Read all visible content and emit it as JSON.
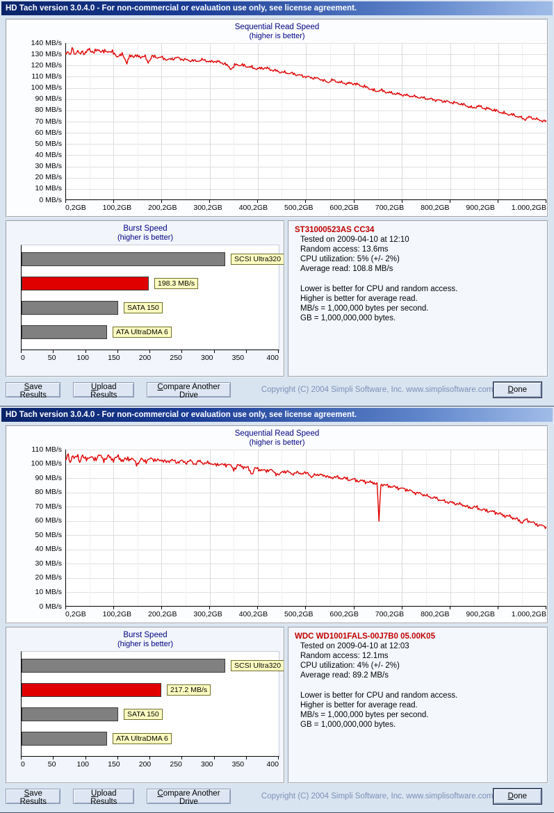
{
  "buttons": {
    "save": "Save Results",
    "upload": "Upload Results",
    "compare": "Compare Another Drive",
    "done": "Done"
  },
  "copyright": "Copyright (C) 2004 Simpli Software, Inc. www.simplisoftware.com",
  "windows": [
    {
      "title": "HD Tach version 3.0.4.0  - For non-commercial or evaluation use only, see license agreement.",
      "seq": {
        "title": "Sequential Read Speed",
        "subtitle": "(higher is better)",
        "y_max": 140,
        "y_step": 10,
        "y_unit": " MB/s",
        "x_labels": [
          "0,2GB",
          "100,2GB",
          "200,2GB",
          "300,2GB",
          "400,2GB",
          "500,2GB",
          "600,2GB",
          "700,2GB",
          "800,2GB",
          "900,2GB",
          "1.000,2GB"
        ],
        "line_color": "#e00000",
        "noise": 1.3,
        "seed": 1,
        "points": [
          [
            0,
            130
          ],
          [
            5,
            134
          ],
          [
            10,
            129
          ],
          [
            15,
            135
          ],
          [
            20,
            130
          ],
          [
            25,
            134
          ],
          [
            30,
            129
          ],
          [
            35,
            133
          ],
          [
            40,
            131
          ],
          [
            50,
            134
          ],
          [
            60,
            132
          ],
          [
            70,
            134
          ],
          [
            80,
            132
          ],
          [
            90,
            133
          ],
          [
            100,
            131
          ],
          [
            110,
            128
          ],
          [
            120,
            130
          ],
          [
            128,
            122
          ],
          [
            135,
            129
          ],
          [
            150,
            128
          ],
          [
            165,
            128
          ],
          [
            172,
            123
          ],
          [
            180,
            128
          ],
          [
            200,
            127
          ],
          [
            215,
            125
          ],
          [
            230,
            127
          ],
          [
            250,
            125
          ],
          [
            270,
            124
          ],
          [
            290,
            125
          ],
          [
            300,
            123
          ],
          [
            310,
            124
          ],
          [
            330,
            122
          ],
          [
            345,
            117
          ],
          [
            355,
            121
          ],
          [
            370,
            120
          ],
          [
            390,
            118
          ],
          [
            400,
            117
          ],
          [
            415,
            118
          ],
          [
            430,
            116
          ],
          [
            450,
            114
          ],
          [
            470,
            113
          ],
          [
            490,
            111
          ],
          [
            500,
            110
          ],
          [
            515,
            109
          ],
          [
            530,
            108
          ],
          [
            545,
            105
          ],
          [
            555,
            107
          ],
          [
            570,
            105
          ],
          [
            585,
            104
          ],
          [
            600,
            104
          ],
          [
            615,
            102
          ],
          [
            630,
            100
          ],
          [
            645,
            97
          ],
          [
            655,
            98
          ],
          [
            670,
            96
          ],
          [
            685,
            95
          ],
          [
            700,
            94
          ],
          [
            715,
            93
          ],
          [
            730,
            92
          ],
          [
            745,
            91
          ],
          [
            760,
            90
          ],
          [
            775,
            89
          ],
          [
            790,
            88
          ],
          [
            805,
            87
          ],
          [
            820,
            86
          ],
          [
            835,
            84
          ],
          [
            848,
            82
          ],
          [
            858,
            84
          ],
          [
            870,
            82
          ],
          [
            885,
            81
          ],
          [
            900,
            79
          ],
          [
            915,
            77
          ],
          [
            930,
            76
          ],
          [
            945,
            74
          ],
          [
            955,
            72
          ],
          [
            965,
            74
          ],
          [
            980,
            72
          ],
          [
            1000,
            70
          ]
        ]
      },
      "burst": {
        "title": "Burst Speed",
        "subtitle": "(higher is better)",
        "axis_max": 400,
        "x_tick_labels": [
          "0",
          "50",
          "100",
          "150",
          "200",
          "250",
          "300",
          "350",
          "400"
        ],
        "bars": [
          {
            "label": "SCSI Ultra320",
            "value": 317,
            "color": "gray"
          },
          {
            "label": "198.3 MB/s",
            "value": 198.3,
            "color": "red"
          },
          {
            "label": "SATA 150",
            "value": 150,
            "color": "gray"
          },
          {
            "label": "ATA UltraDMA 6",
            "value": 133,
            "color": "gray"
          }
        ]
      },
      "info": {
        "drive": "ST31000523AS CC34",
        "lines": [
          "Tested on 2009-04-10 at 12:10",
          "Random access: 13.6ms",
          "CPU utilization: 5% (+/- 2%)",
          "Average read: 108.8 MB/s"
        ],
        "notes": [
          "Lower is better for CPU and random access.",
          "Higher is better for average read.",
          "MB/s = 1,000,000 bytes per second.",
          "GB = 1,000,000,000 bytes."
        ]
      }
    },
    {
      "title": "HD Tach version 3.0.4.0  - For non-commercial or evaluation use only, see license agreement.",
      "seq": {
        "title": "Sequential Read Speed",
        "subtitle": "(higher is better)",
        "y_max": 110,
        "y_step": 10,
        "y_unit": " MB/s",
        "x_labels": [
          "0,2GB",
          "100,2GB",
          "200,2GB",
          "300,2GB",
          "400,2GB",
          "500,2GB",
          "600,2GB",
          "700,2GB",
          "800,2GB",
          "900,2GB",
          "1.000,2GB"
        ],
        "line_color": "#e00000",
        "noise": 1.2,
        "seed": 2,
        "points": [
          [
            0,
            102
          ],
          [
            5,
            106
          ],
          [
            10,
            101
          ],
          [
            15,
            107
          ],
          [
            20,
            103
          ],
          [
            25,
            106
          ],
          [
            30,
            102
          ],
          [
            35,
            106
          ],
          [
            40,
            103
          ],
          [
            50,
            105
          ],
          [
            60,
            103
          ],
          [
            70,
            106
          ],
          [
            80,
            103
          ],
          [
            90,
            105
          ],
          [
            100,
            103
          ],
          [
            110,
            105
          ],
          [
            120,
            102
          ],
          [
            130,
            104
          ],
          [
            140,
            103
          ],
          [
            150,
            100
          ],
          [
            158,
            103
          ],
          [
            170,
            102
          ],
          [
            180,
            104
          ],
          [
            190,
            102
          ],
          [
            200,
            103
          ],
          [
            210,
            101
          ],
          [
            220,
            103
          ],
          [
            230,
            101
          ],
          [
            240,
            102
          ],
          [
            250,
            101
          ],
          [
            260,
            102
          ],
          [
            270,
            100
          ],
          [
            280,
            102
          ],
          [
            290,
            100
          ],
          [
            300,
            101
          ],
          [
            310,
            99
          ],
          [
            320,
            100
          ],
          [
            330,
            99
          ],
          [
            340,
            100
          ],
          [
            350,
            96
          ],
          [
            358,
            99
          ],
          [
            370,
            98
          ],
          [
            380,
            97
          ],
          [
            388,
            93
          ],
          [
            395,
            97
          ],
          [
            405,
            96
          ],
          [
            415,
            95
          ],
          [
            425,
            96
          ],
          [
            435,
            94
          ],
          [
            445,
            92
          ],
          [
            452,
            95
          ],
          [
            465,
            94
          ],
          [
            475,
            93
          ],
          [
            485,
            94
          ],
          [
            495,
            93
          ],
          [
            505,
            94
          ],
          [
            512,
            90
          ],
          [
            520,
            93
          ],
          [
            530,
            92
          ],
          [
            540,
            92
          ],
          [
            550,
            90
          ],
          [
            560,
            91
          ],
          [
            570,
            90
          ],
          [
            580,
            90
          ],
          [
            590,
            89
          ],
          [
            600,
            89
          ],
          [
            610,
            88
          ],
          [
            620,
            88
          ],
          [
            630,
            87
          ],
          [
            640,
            87
          ],
          [
            648,
            86
          ],
          [
            652,
            60
          ],
          [
            656,
            86
          ],
          [
            665,
            85
          ],
          [
            680,
            84
          ],
          [
            695,
            83
          ],
          [
            710,
            82
          ],
          [
            725,
            80
          ],
          [
            740,
            79
          ],
          [
            755,
            77
          ],
          [
            770,
            76
          ],
          [
            785,
            74
          ],
          [
            800,
            73
          ],
          [
            815,
            72
          ],
          [
            830,
            71
          ],
          [
            840,
            69
          ],
          [
            850,
            70
          ],
          [
            865,
            68
          ],
          [
            880,
            67
          ],
          [
            895,
            66
          ],
          [
            910,
            64
          ],
          [
            925,
            63
          ],
          [
            940,
            61
          ],
          [
            950,
            59
          ],
          [
            958,
            61
          ],
          [
            970,
            59
          ],
          [
            985,
            57
          ],
          [
            1000,
            56
          ]
        ]
      },
      "burst": {
        "title": "Burst Speed",
        "subtitle": "(higher is better)",
        "axis_max": 400,
        "x_tick_labels": [
          "0",
          "50",
          "100",
          "150",
          "200",
          "250",
          "300",
          "350",
          "400"
        ],
        "bars": [
          {
            "label": "SCSI Ultra320",
            "value": 317,
            "color": "gray"
          },
          {
            "label": "217.2 MB/s",
            "value": 217.2,
            "color": "red"
          },
          {
            "label": "SATA 150",
            "value": 150,
            "color": "gray"
          },
          {
            "label": "ATA UltraDMA 6",
            "value": 133,
            "color": "gray"
          }
        ]
      },
      "info": {
        "drive": "WDC WD1001FALS-00J7B0 05.00K05",
        "lines": [
          "Tested on 2009-04-10 at 12:03",
          "Random access: 12.1ms",
          "CPU utilization: 4% (+/- 2%)",
          "Average read: 89.2 MB/s"
        ],
        "notes": [
          "Lower is better for CPU and random access.",
          "Higher is better for average read.",
          "MB/s = 1,000,000 bytes per second.",
          "GB = 1,000,000,000 bytes."
        ]
      }
    }
  ]
}
